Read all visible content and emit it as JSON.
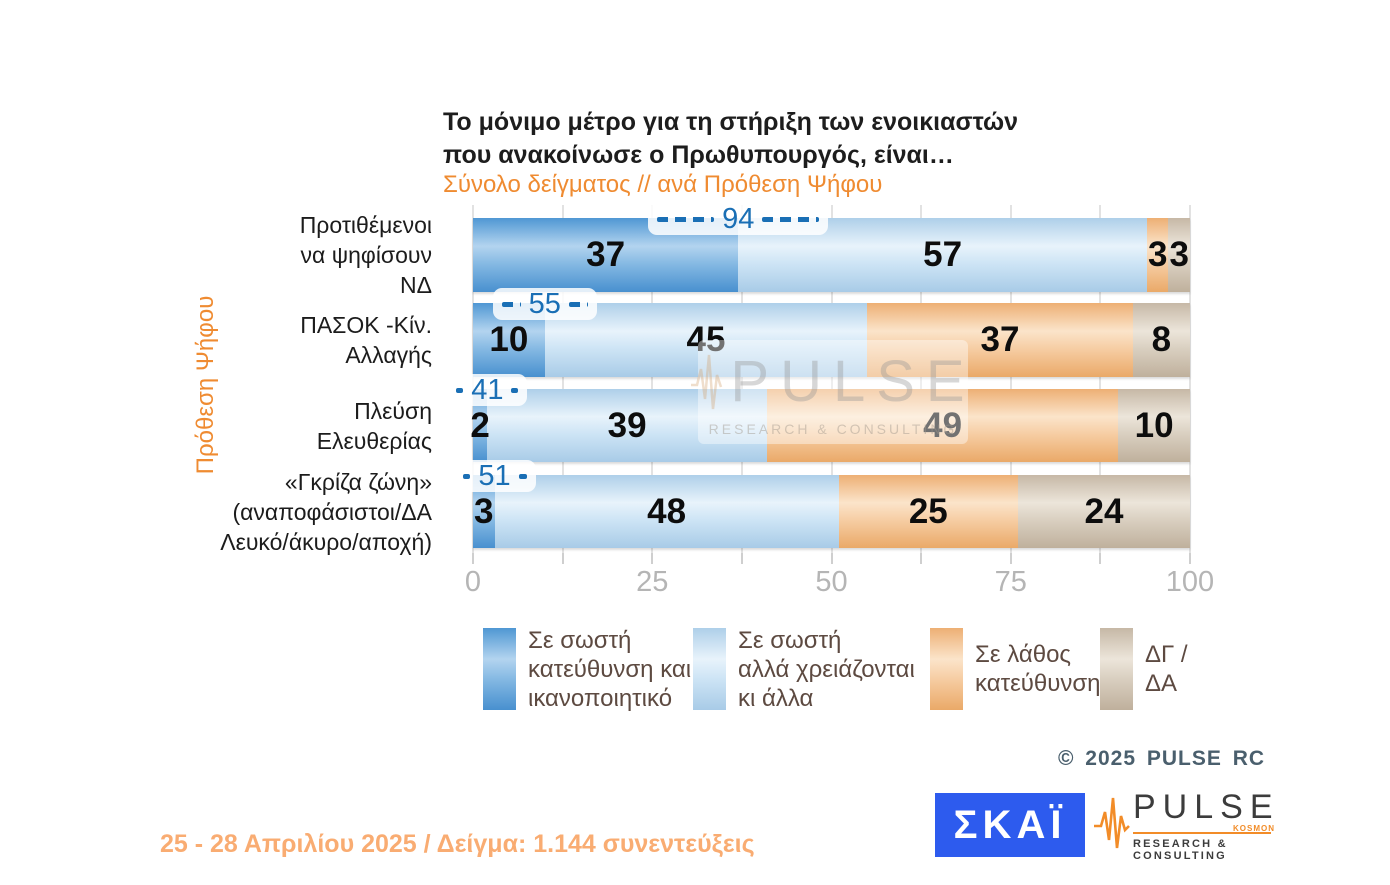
{
  "title": {
    "line1": "Το μόνιμο μέτρο για τη στήριξη των ενοικιαστών",
    "line2": "που ανακοίνωσε ο Πρωθυπουργός, είναι…"
  },
  "subtitle": "Σύνολο δείγματος // ανά Πρόθεση Ψήφου",
  "y_axis_label": "Πρόθεση Ψήφου",
  "chart_data": {
    "type": "bar",
    "orientation": "horizontal",
    "stacked": true,
    "xlim": [
      0,
      100
    ],
    "x_major_ticks": [
      "0",
      "25",
      "50",
      "75",
      "100"
    ],
    "x_minor_tick_step": 12.5,
    "grid": true,
    "legend_position": "bottom",
    "series": [
      "Σε σωστή κατεύθυνση και ικανοποιητικό",
      "Σε σωστή αλλά χρειάζονται κι άλλα",
      "Σε λάθος κατεύθυνση",
      "ΔΓ / ΔΑ"
    ],
    "categories": [
      {
        "label_lines": [
          "Προτιθέμενοι",
          "να ψηφίσουν",
          "ΝΔ"
        ],
        "values": [
          37,
          57,
          3,
          3
        ],
        "sum_marker": "94",
        "marker_width": 180
      },
      {
        "label_lines": [
          "ΠΑΣΟΚ -Κίν.",
          "Αλλαγής"
        ],
        "values": [
          10,
          45,
          37,
          8
        ],
        "sum_marker": "55",
        "marker_width": 104
      },
      {
        "label_lines": [
          "Πλεύση",
          "Ελευθερίας"
        ],
        "values": [
          2,
          39,
          49,
          10
        ],
        "sum_marker": "41",
        "marker_width": 80
      },
      {
        "label_lines": [
          "«Γκρίζα ζώνη»",
          "(αναποφάσιστοι/ΔΑ",
          "Λευκό/άκυρο/αποχή)"
        ],
        "values": [
          3,
          48,
          25,
          24
        ],
        "sum_marker": "51",
        "marker_width": 82
      }
    ]
  },
  "legend": {
    "items": [
      {
        "lines": [
          "Σε σωστή",
          "κατεύθυνση και",
          "ικανοποιητικό"
        ]
      },
      {
        "lines": [
          "Σε σωστή",
          "αλλά χρειάζονται",
          "κι άλλα"
        ]
      },
      {
        "lines": [
          "Σε λάθος",
          "κατεύθυνση"
        ]
      },
      {
        "lines": [
          "ΔΓ /",
          "ΔΑ"
        ]
      }
    ]
  },
  "watermark": {
    "text": "PULSE",
    "subtext": "RESEARCH & CONSULTING"
  },
  "copyright": "© 2025 PULSE RC",
  "footer": "25 - 28 Απριλίου 2025  /  Δείγμα:  1.144 συνεντεύξεις",
  "logos": {
    "skai": "ΣΚΑΪ",
    "pulse_name": "PULSE",
    "pulse_sub": "RESEARCH & CONSULTING",
    "pulse_tag": "KOSMON"
  },
  "colors": {
    "series": [
      "#5b9fd6",
      "#c8e0f4",
      "#f2be8c",
      "#cfc2b0"
    ],
    "marker_blue": "#1a6fb5",
    "accent_orange": "#ef8b31",
    "footer_orange": "#f9ac72",
    "copyright": "#4a5f6d",
    "skai_blue": "#2d5bee",
    "pulse_orange": "#f28c28"
  }
}
